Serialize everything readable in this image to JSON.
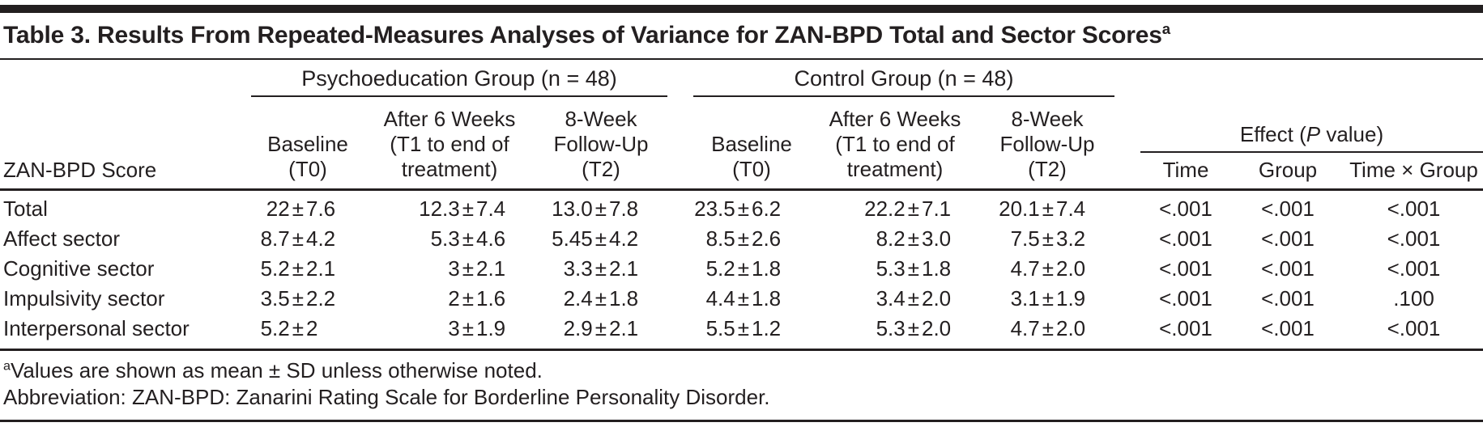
{
  "title": {
    "text": "Table 3. Results From Repeated-Measures Analyses of Variance for ZAN-BPD Total and Sector Scores",
    "footnote_marker": "a"
  },
  "table": {
    "row_header": "ZAN-BPD Score",
    "groups": [
      {
        "label": "Psychoeducation Group (n = 48)",
        "columns": [
          "Baseline\n(T0)",
          "After 6 Weeks\n(T1 to end of\ntreatment)",
          "8-Week\nFollow-Up\n(T2)"
        ]
      },
      {
        "label": "Control Group (n = 48)",
        "columns": [
          "Baseline\n(T0)",
          "After 6 Weeks\n(T1 to end of\ntreatment)",
          "8-Week\nFollow-Up\n(T2)"
        ]
      }
    ],
    "effect": {
      "label_pre": "Effect (",
      "label_italic": "P",
      "label_post": " value)",
      "columns": [
        "Time",
        "Group",
        "Time × Group"
      ]
    },
    "rows": [
      {
        "label": "Total",
        "psychoeducation": [
          "22±7.6",
          "12.3±7.4",
          "13.0±7.8"
        ],
        "control": [
          "23.5±6.2",
          "22.2±7.1",
          "20.1±7.4"
        ],
        "effects": [
          "<.001",
          "<.001",
          "<.001"
        ]
      },
      {
        "label": "Affect sector",
        "psychoeducation": [
          "8.7±4.2",
          "5.3±4.6",
          "5.45±4.2"
        ],
        "control": [
          "8.5±2.6",
          "8.2±3.0",
          "7.5±3.2"
        ],
        "effects": [
          "<.001",
          "<.001",
          "<.001"
        ]
      },
      {
        "label": "Cognitive sector",
        "psychoeducation": [
          "5.2±2.1",
          "3±2.1",
          "3.3±2.1"
        ],
        "control": [
          "5.2±1.8",
          "5.3±1.8",
          "4.7±2.0"
        ],
        "effects": [
          "<.001",
          "<.001",
          "<.001"
        ]
      },
      {
        "label": "Impulsivity sector",
        "psychoeducation": [
          "3.5±2.2",
          "2±1.6",
          "2.4±1.8"
        ],
        "control": [
          "4.4±1.8",
          "3.4±2.0",
          "3.1±1.9"
        ],
        "effects": [
          "<.001",
          "<.001",
          ".100"
        ]
      },
      {
        "label": "Interpersonal sector",
        "psychoeducation": [
          "5.2±2",
          "3±1.9",
          "2.9±2.1"
        ],
        "control": [
          "5.5±1.2",
          "5.3±2.0",
          "4.7±2.0"
        ],
        "effects": [
          "<.001",
          "<.001",
          "<.001"
        ]
      }
    ]
  },
  "footnotes": [
    {
      "marker": "a",
      "text": "Values are shown as mean ± SD unless otherwise noted."
    },
    {
      "marker": "",
      "text": "Abbreviation: ZAN-BPD: Zanarini Rating Scale for Borderline Personality Disorder."
    }
  ],
  "colors": {
    "text": "#231f20",
    "rule": "#231f20",
    "background": "#ffffff"
  }
}
